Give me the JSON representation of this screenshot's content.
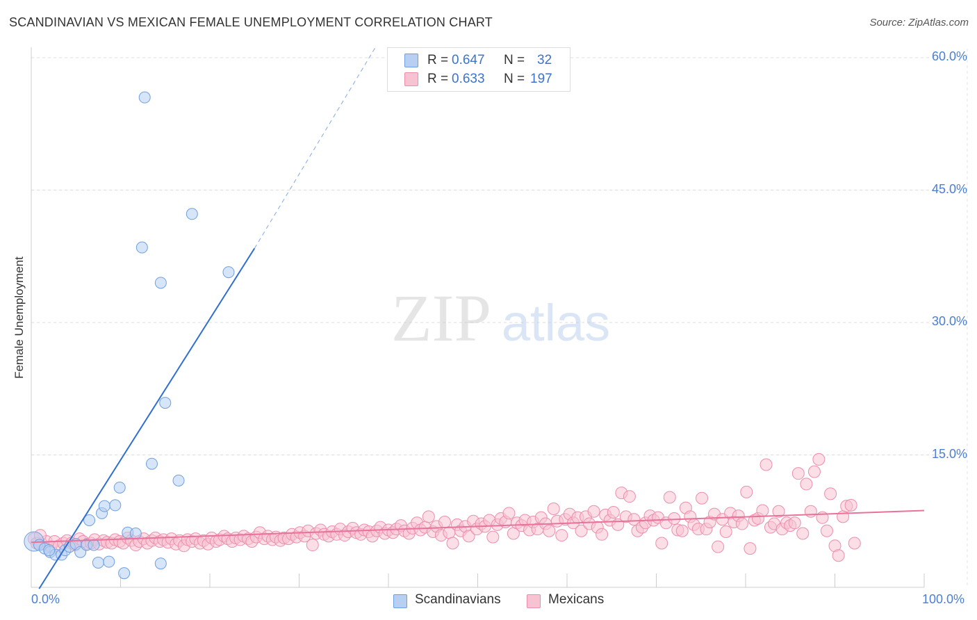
{
  "title": "SCANDINAVIAN VS MEXICAN FEMALE UNEMPLOYMENT CORRELATION CHART",
  "source": "Source: ZipAtlas.com",
  "watermark": {
    "zip": "ZIP",
    "atlas": "atlas"
  },
  "legend": {
    "rows": [
      {
        "r_label": "R =",
        "r_value": "0.647",
        "n_label": "N =",
        "n_value": "32"
      },
      {
        "r_label": "R =",
        "r_value": "0.633",
        "n_label": "N =",
        "n_value": "197"
      }
    ]
  },
  "bottom_legend": [
    "Scandinavians",
    "Mexicans"
  ],
  "colors": {
    "scandinavian_fill": "#b7d0f2",
    "scandinavian_stroke": "#6f9ee0",
    "scandinavian_line": "#2f6fd1",
    "mexican_fill": "#f7c2d2",
    "mexican_stroke": "#ec8eab",
    "mexican_line": "#e8729a",
    "tick_text": "#4a7fd4"
  },
  "chart_data": {
    "type": "scatter",
    "title": "SCANDINAVIAN VS MEXICAN FEMALE UNEMPLOYMENT CORRELATION CHART",
    "xlabel": "",
    "ylabel": "Female Unemployment",
    "xlim": [
      0,
      100
    ],
    "ylim": [
      0,
      62
    ],
    "x_tick_labels": [
      "0.0%",
      "100.0%"
    ],
    "y_ticks": [
      15,
      30,
      45,
      60
    ],
    "y_tick_labels": [
      "15.0%",
      "30.0%",
      "45.0%",
      "60.0%"
    ],
    "grid": true,
    "series": [
      {
        "name": "Scandinavians",
        "R": 0.647,
        "N": 32,
        "trend": {
          "x0": 0,
          "y0": -1.4,
          "x1": 25,
          "y1": 38.4,
          "dashed_to_x": 38.5,
          "dashed_to_y": 60
        },
        "points": [
          [
            0.3,
            5.2
          ],
          [
            0.9,
            4.8
          ],
          [
            1.5,
            4.4
          ],
          [
            2.1,
            4.0
          ],
          [
            2.7,
            3.7
          ],
          [
            3.4,
            3.7
          ],
          [
            3.8,
            4.2
          ],
          [
            4.3,
            4.6
          ],
          [
            5.0,
            4.9
          ],
          [
            5.5,
            4.0
          ],
          [
            6.2,
            4.8
          ],
          [
            6.5,
            7.6
          ],
          [
            7.0,
            4.8
          ],
          [
            7.5,
            2.8
          ],
          [
            7.9,
            8.4
          ],
          [
            8.2,
            9.2
          ],
          [
            8.7,
            2.9
          ],
          [
            9.4,
            9.3
          ],
          [
            9.9,
            11.3
          ],
          [
            10.4,
            1.6
          ],
          [
            10.8,
            6.2
          ],
          [
            11.7,
            6.1
          ],
          [
            12.4,
            38.5
          ],
          [
            12.7,
            55.5
          ],
          [
            13.5,
            14.0
          ],
          [
            14.5,
            34.5
          ],
          [
            14.5,
            2.7
          ],
          [
            15.0,
            20.9
          ],
          [
            16.5,
            12.1
          ],
          [
            18.0,
            42.3
          ],
          [
            22.1,
            35.7
          ],
          [
            2.0,
            4.2
          ]
        ]
      },
      {
        "name": "Mexicans",
        "R": 0.633,
        "N": 197,
        "trend": {
          "x0": 0,
          "y0": 5.1,
          "x1": 100,
          "y1": 8.7
        },
        "points": [
          [
            0.3,
            5.5
          ],
          [
            0.8,
            5.0
          ],
          [
            1.2,
            4.9
          ],
          [
            1.7,
            5.2
          ],
          [
            2.2,
            4.6
          ],
          [
            2.6,
            5.2
          ],
          [
            3.1,
            4.7
          ],
          [
            3.6,
            5.0
          ],
          [
            4.0,
            5.3
          ],
          [
            4.5,
            5.0
          ],
          [
            4.9,
            4.8
          ],
          [
            5.4,
            5.5
          ],
          [
            5.8,
            5.2
          ],
          [
            6.3,
            4.9
          ],
          [
            6.7,
            5.0
          ],
          [
            7.1,
            5.4
          ],
          [
            7.6,
            4.9
          ],
          [
            8.1,
            5.3
          ],
          [
            8.5,
            5.1
          ],
          [
            9.0,
            5.0
          ],
          [
            9.4,
            5.4
          ],
          [
            9.9,
            5.2
          ],
          [
            10.3,
            5.0
          ],
          [
            10.8,
            5.6
          ],
          [
            11.2,
            5.3
          ],
          [
            11.7,
            4.8
          ],
          [
            12.1,
            5.2
          ],
          [
            12.6,
            5.5
          ],
          [
            13.0,
            5.0
          ],
          [
            13.5,
            5.3
          ],
          [
            13.9,
            5.6
          ],
          [
            14.4,
            5.2
          ],
          [
            14.8,
            5.4
          ],
          [
            15.3,
            5.1
          ],
          [
            15.7,
            5.5
          ],
          [
            16.2,
            4.9
          ],
          [
            16.6,
            5.3
          ],
          [
            17.1,
            4.7
          ],
          [
            17.5,
            5.4
          ],
          [
            18.0,
            5.2
          ],
          [
            18.4,
            5.5
          ],
          [
            18.9,
            5.0
          ],
          [
            19.3,
            5.3
          ],
          [
            19.8,
            4.9
          ],
          [
            20.2,
            5.6
          ],
          [
            20.7,
            5.2
          ],
          [
            21.1,
            5.4
          ],
          [
            21.6,
            5.8
          ],
          [
            22.0,
            5.5
          ],
          [
            22.5,
            5.2
          ],
          [
            22.9,
            5.6
          ],
          [
            23.4,
            5.4
          ],
          [
            23.8,
            5.8
          ],
          [
            24.3,
            5.5
          ],
          [
            24.7,
            5.2
          ],
          [
            25.2,
            5.7
          ],
          [
            25.6,
            6.2
          ],
          [
            26.1,
            5.5
          ],
          [
            26.5,
            5.8
          ],
          [
            27.0,
            5.4
          ],
          [
            27.4,
            5.7
          ],
          [
            27.9,
            5.3
          ],
          [
            28.3,
            5.6
          ],
          [
            28.8,
            5.5
          ],
          [
            29.2,
            6.0
          ],
          [
            29.7,
            5.7
          ],
          [
            30.1,
            6.2
          ],
          [
            30.6,
            5.8
          ],
          [
            31.0,
            6.4
          ],
          [
            31.5,
            4.8
          ],
          [
            31.9,
            6.1
          ],
          [
            32.4,
            6.5
          ],
          [
            32.8,
            6.0
          ],
          [
            33.3,
            5.8
          ],
          [
            33.7,
            6.3
          ],
          [
            34.2,
            6.0
          ],
          [
            34.6,
            6.6
          ],
          [
            35.1,
            5.9
          ],
          [
            35.5,
            6.3
          ],
          [
            36.0,
            6.7
          ],
          [
            36.4,
            6.2
          ],
          [
            36.9,
            6.0
          ],
          [
            37.3,
            6.5
          ],
          [
            37.8,
            6.3
          ],
          [
            38.2,
            5.8
          ],
          [
            38.7,
            6.4
          ],
          [
            39.1,
            6.8
          ],
          [
            39.6,
            6.1
          ],
          [
            40.0,
            6.5
          ],
          [
            40.5,
            6.2
          ],
          [
            40.9,
            6.6
          ],
          [
            41.4,
            7.0
          ],
          [
            41.8,
            6.4
          ],
          [
            42.3,
            6.1
          ],
          [
            42.7,
            6.7
          ],
          [
            43.2,
            7.3
          ],
          [
            43.6,
            6.5
          ],
          [
            44.1,
            6.8
          ],
          [
            44.5,
            8.0
          ],
          [
            45.0,
            6.3
          ],
          [
            45.4,
            6.9
          ],
          [
            45.9,
            5.9
          ],
          [
            46.3,
            7.4
          ],
          [
            46.8,
            6.2
          ],
          [
            47.2,
            5.0
          ],
          [
            47.7,
            7.1
          ],
          [
            48.1,
            6.4
          ],
          [
            48.6,
            6.9
          ],
          [
            49.0,
            5.8
          ],
          [
            49.5,
            7.5
          ],
          [
            49.9,
            6.6
          ],
          [
            50.4,
            7.2
          ],
          [
            50.8,
            6.9
          ],
          [
            51.3,
            7.6
          ],
          [
            51.7,
            5.7
          ],
          [
            52.2,
            7.1
          ],
          [
            52.6,
            7.8
          ],
          [
            53.1,
            7.4
          ],
          [
            53.5,
            8.4
          ],
          [
            54.0,
            6.1
          ],
          [
            54.4,
            7.3
          ],
          [
            54.9,
            7.0
          ],
          [
            55.3,
            7.6
          ],
          [
            55.8,
            6.5
          ],
          [
            56.2,
            7.4
          ],
          [
            56.7,
            6.6
          ],
          [
            57.1,
            7.9
          ],
          [
            57.6,
            7.2
          ],
          [
            58.0,
            6.4
          ],
          [
            58.5,
            8.9
          ],
          [
            58.9,
            7.5
          ],
          [
            59.4,
            5.9
          ],
          [
            59.8,
            7.7
          ],
          [
            60.3,
            8.3
          ],
          [
            60.7,
            7.3
          ],
          [
            61.2,
            7.9
          ],
          [
            61.6,
            6.4
          ],
          [
            62.1,
            8.0
          ],
          [
            62.5,
            7.2
          ],
          [
            63.0,
            8.6
          ],
          [
            63.4,
            6.8
          ],
          [
            63.9,
            6.0
          ],
          [
            64.3,
            8.2
          ],
          [
            64.8,
            7.6
          ],
          [
            65.2,
            8.5
          ],
          [
            65.7,
            7.1
          ],
          [
            66.1,
            10.7
          ],
          [
            66.6,
            8.0
          ],
          [
            67.0,
            10.3
          ],
          [
            67.5,
            7.7
          ],
          [
            67.9,
            6.4
          ],
          [
            68.4,
            6.8
          ],
          [
            68.8,
            7.3
          ],
          [
            69.3,
            8.1
          ],
          [
            69.7,
            7.6
          ],
          [
            70.2,
            7.9
          ],
          [
            70.6,
            5.0
          ],
          [
            71.1,
            7.3
          ],
          [
            71.5,
            10.2
          ],
          [
            72.0,
            7.8
          ],
          [
            72.4,
            6.5
          ],
          [
            72.9,
            6.4
          ],
          [
            73.3,
            9.0
          ],
          [
            73.8,
            8.0
          ],
          [
            74.2,
            7.1
          ],
          [
            74.7,
            6.6
          ],
          [
            75.1,
            10.1
          ],
          [
            75.6,
            6.6
          ],
          [
            76.0,
            7.4
          ],
          [
            76.5,
            8.3
          ],
          [
            76.9,
            4.6
          ],
          [
            77.4,
            7.7
          ],
          [
            77.8,
            6.3
          ],
          [
            78.3,
            8.4
          ],
          [
            78.7,
            7.4
          ],
          [
            79.2,
            8.1
          ],
          [
            79.6,
            7.2
          ],
          [
            80.1,
            10.8
          ],
          [
            80.5,
            4.4
          ],
          [
            81.0,
            7.6
          ],
          [
            81.4,
            7.8
          ],
          [
            81.9,
            8.7
          ],
          [
            82.3,
            13.9
          ],
          [
            82.8,
            6.8
          ],
          [
            83.2,
            7.2
          ],
          [
            83.7,
            8.6
          ],
          [
            84.1,
            6.6
          ],
          [
            84.6,
            7.3
          ],
          [
            85.0,
            7.0
          ],
          [
            85.5,
            7.3
          ],
          [
            85.9,
            12.9
          ],
          [
            86.4,
            6.1
          ],
          [
            86.8,
            11.7
          ],
          [
            87.3,
            8.6
          ],
          [
            87.7,
            13.1
          ],
          [
            88.2,
            14.5
          ],
          [
            88.6,
            7.9
          ],
          [
            89.1,
            6.4
          ],
          [
            89.5,
            10.6
          ],
          [
            90.0,
            4.7
          ],
          [
            90.4,
            3.6
          ],
          [
            90.9,
            8.0
          ],
          [
            91.3,
            9.2
          ],
          [
            91.8,
            9.3
          ],
          [
            0.6,
            5.0
          ],
          [
            1.0,
            5.9
          ],
          [
            92.2,
            5.0
          ]
        ]
      }
    ]
  }
}
